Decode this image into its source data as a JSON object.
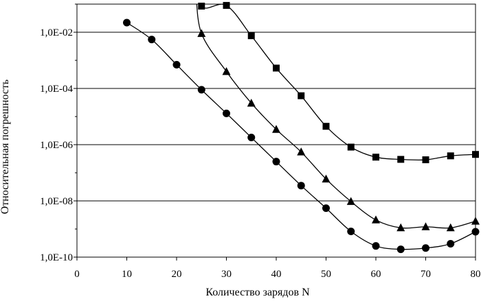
{
  "chart_data": {
    "type": "line",
    "title": "",
    "xlabel": "Количество зарядов N",
    "ylabel": "Относительная погрешность",
    "xlim": [
      0,
      80
    ],
    "x_ticks": [
      0,
      10,
      20,
      30,
      40,
      50,
      60,
      70,
      80
    ],
    "y_scale": "log",
    "ylim": [
      1e-10,
      0.1
    ],
    "y_ticks": [
      1e-10,
      1e-08,
      1e-06,
      0.0001,
      0.01
    ],
    "y_tick_labels": [
      "1,0E-10",
      "1,0E-08",
      "1,0E-06",
      "1,0E-04",
      "1,0E-02"
    ],
    "grid": "horizontal",
    "legend": "none",
    "series": [
      {
        "marker": "square",
        "x": [
          25,
          30,
          35,
          40,
          45,
          50,
          55,
          60,
          65,
          70,
          75,
          80
        ],
        "y": [
          0.085,
          0.09,
          0.0075,
          0.00053,
          5.5e-05,
          4.5e-06,
          8.2e-07,
          3.6e-07,
          3e-07,
          2.9e-07,
          4e-07,
          4.5e-07
        ]
      },
      {
        "marker": "triangle",
        "x": [
          25,
          30,
          35,
          40,
          45,
          50,
          55,
          60,
          65,
          70,
          75,
          80
        ],
        "y": [
          0.009,
          0.0004,
          3e-05,
          3.5e-06,
          5.5e-07,
          6e-08,
          9.5e-09,
          2.1e-09,
          1.1e-09,
          1.2e-09,
          1.1e-09,
          1.9e-09
        ]
      },
      {
        "marker": "circle",
        "x": [
          10,
          15,
          20,
          25,
          30,
          35,
          40,
          45,
          50,
          55,
          60,
          65,
          70,
          75,
          80
        ],
        "y": [
          0.022,
          0.0055,
          0.0007,
          9e-05,
          1.3e-05,
          1.8e-06,
          2.5e-07,
          3.5e-08,
          5.5e-09,
          8.2e-10,
          2.5e-10,
          1.9e-10,
          2.1e-10,
          3e-10,
          8e-10
        ]
      }
    ]
  }
}
